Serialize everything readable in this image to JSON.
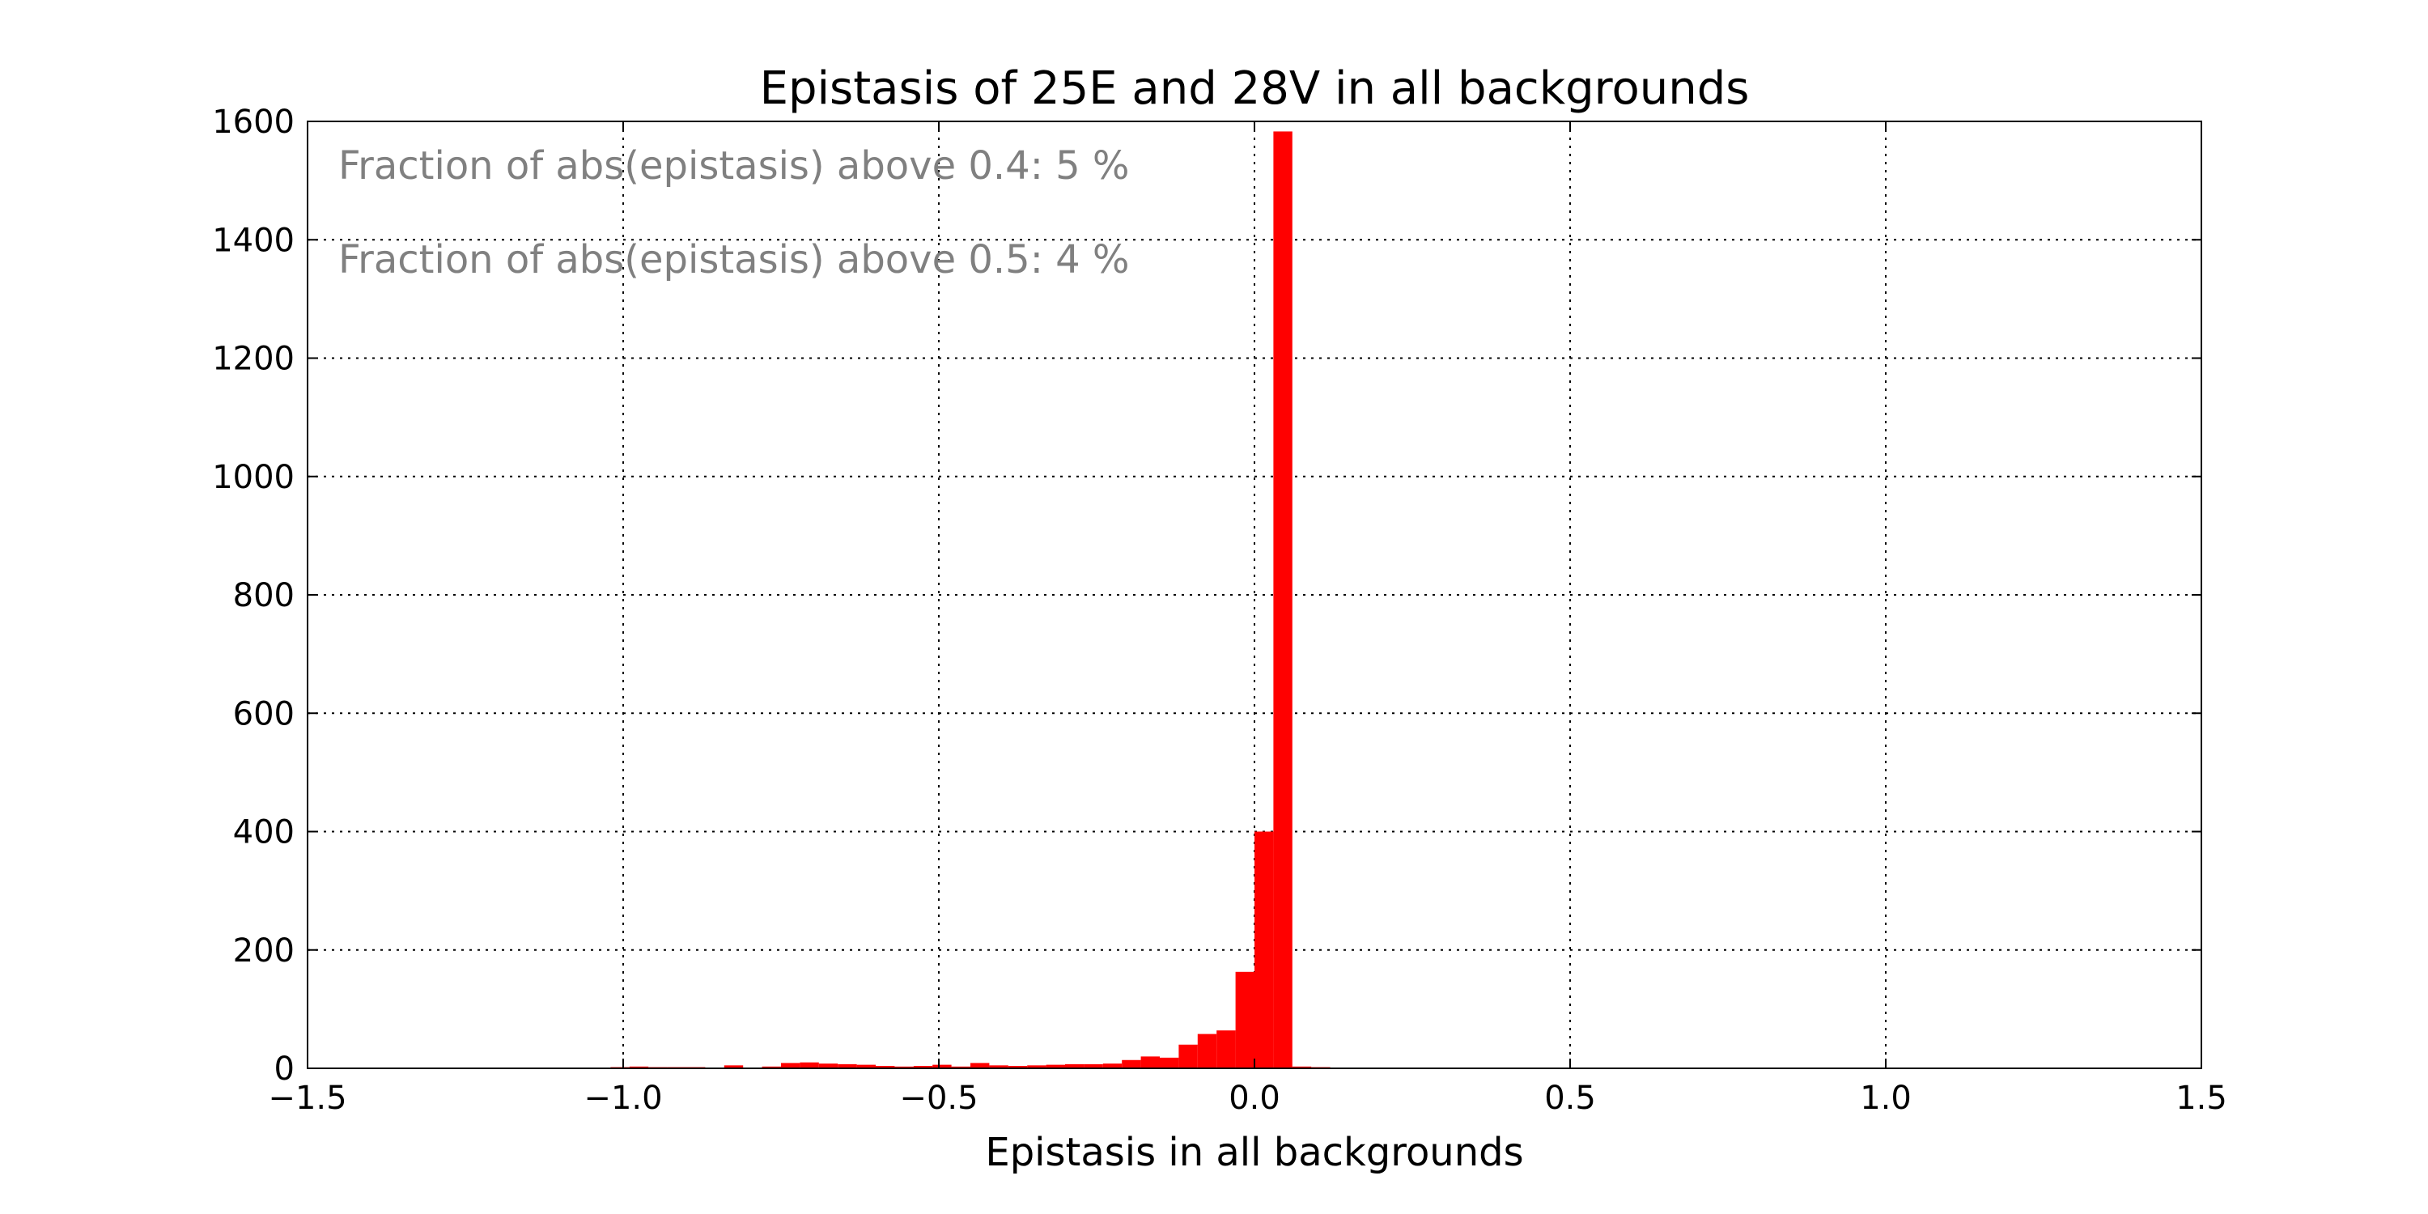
{
  "chart_data": {
    "type": "bar",
    "title": "Epistasis of 25E and 28V in all backgrounds",
    "xlabel": "Epistasis in all backgrounds",
    "ylabel": "",
    "xlim": [
      -1.5,
      1.5
    ],
    "ylim": [
      0,
      1600
    ],
    "xticks": [
      -1.5,
      -1.0,
      -0.5,
      0.0,
      0.5,
      1.0,
      1.5
    ],
    "xtick_labels": [
      "−1.5",
      "−1.0",
      "−0.5",
      "0.0",
      "0.5",
      "1.0",
      "1.5"
    ],
    "yticks": [
      0,
      200,
      400,
      600,
      800,
      1000,
      1200,
      1400,
      1600
    ],
    "ytick_labels": [
      "0",
      "200",
      "400",
      "600",
      "800",
      "1000",
      "1200",
      "1400",
      "1600"
    ],
    "grid": true,
    "bar_color": "#ff0000",
    "bin_width": 0.03,
    "bins": [
      {
        "x": -1.02,
        "value": 2
      },
      {
        "x": -0.99,
        "value": 3
      },
      {
        "x": -0.96,
        "value": 2
      },
      {
        "x": -0.93,
        "value": 2
      },
      {
        "x": -0.9,
        "value": 2
      },
      {
        "x": -0.84,
        "value": 5
      },
      {
        "x": -0.78,
        "value": 3
      },
      {
        "x": -0.75,
        "value": 9
      },
      {
        "x": -0.72,
        "value": 10
      },
      {
        "x": -0.69,
        "value": 8
      },
      {
        "x": -0.66,
        "value": 7
      },
      {
        "x": -0.63,
        "value": 6
      },
      {
        "x": -0.6,
        "value": 4
      },
      {
        "x": -0.57,
        "value": 3
      },
      {
        "x": -0.54,
        "value": 4
      },
      {
        "x": -0.51,
        "value": 6
      },
      {
        "x": -0.48,
        "value": 3
      },
      {
        "x": -0.45,
        "value": 9
      },
      {
        "x": -0.42,
        "value": 5
      },
      {
        "x": -0.39,
        "value": 4
      },
      {
        "x": -0.36,
        "value": 5
      },
      {
        "x": -0.33,
        "value": 6
      },
      {
        "x": -0.3,
        "value": 7
      },
      {
        "x": -0.27,
        "value": 7
      },
      {
        "x": -0.24,
        "value": 8
      },
      {
        "x": -0.21,
        "value": 14
      },
      {
        "x": -0.18,
        "value": 20
      },
      {
        "x": -0.15,
        "value": 18
      },
      {
        "x": -0.12,
        "value": 40
      },
      {
        "x": -0.09,
        "value": 58
      },
      {
        "x": -0.06,
        "value": 64
      },
      {
        "x": -0.03,
        "value": 163
      },
      {
        "x": 0.0,
        "value": 400
      },
      {
        "x": 0.03,
        "value": 1583
      },
      {
        "x": 0.06,
        "value": 3
      },
      {
        "x": 0.09,
        "value": 2
      }
    ],
    "annotations": [
      "Fraction of abs(epistasis) above 0.4: 5 %",
      "Fraction of abs(epistasis) above 0.5: 4 %"
    ]
  }
}
